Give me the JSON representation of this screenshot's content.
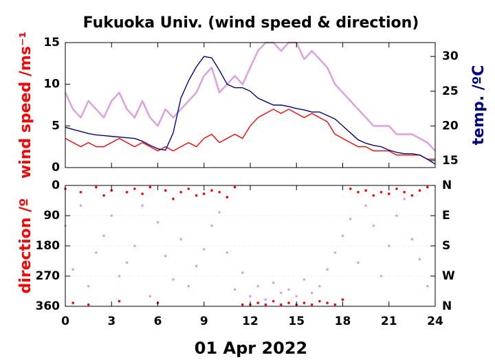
{
  "chart_data": [
    {
      "type": "line",
      "title": "Fukuoka Univ. (wind speed & direction)",
      "ylabel": "wind speed /ms⁻¹",
      "y2label": "temp. /ºC",
      "xlim": [
        0,
        24
      ],
      "xticks": [
        0,
        3,
        6,
        9,
        12,
        15,
        18,
        21,
        24
      ],
      "xticklabels": false,
      "ylim": [
        0,
        15
      ],
      "yticks": [
        0,
        5,
        10,
        15
      ],
      "ylabel_color": "#ff0000",
      "y2lim": [
        14,
        32
      ],
      "y2ticks": [
        15,
        20,
        25,
        30
      ],
      "y2label_color": "#00008b",
      "x": [
        0,
        0.5,
        1,
        1.5,
        2,
        2.5,
        3,
        3.5,
        4,
        4.5,
        5,
        5.5,
        6,
        6.5,
        7,
        7.5,
        8,
        8.5,
        9,
        9.5,
        10,
        10.5,
        11,
        11.5,
        12,
        12.5,
        13,
        13.5,
        14,
        14.5,
        15,
        15.5,
        16,
        16.5,
        17,
        17.5,
        18,
        18.5,
        19,
        19.5,
        20,
        20.5,
        21,
        21.5,
        22,
        22.5,
        23,
        23.5,
        24
      ],
      "series": [
        {
          "color": "#dda0dd",
          "values": [
            9,
            7,
            6,
            8,
            7,
            6,
            8,
            9,
            7,
            6,
            8,
            6,
            5,
            7,
            6,
            7,
            8,
            9,
            11,
            12,
            9,
            10,
            11,
            10,
            12,
            14,
            15,
            15,
            14,
            15,
            15,
            13,
            14,
            13,
            12,
            10,
            9,
            8,
            7,
            6,
            5,
            5,
            5,
            4,
            4,
            4,
            3.5,
            3,
            2
          ]
        },
        {
          "color": "#ff0000",
          "values": [
            3.5,
            3,
            2.5,
            3,
            2.5,
            2.5,
            3,
            3.5,
            3,
            2.5,
            3,
            2.5,
            2,
            2.5,
            2,
            2.5,
            3,
            2.5,
            3.5,
            4,
            3,
            3.5,
            4,
            3.5,
            5,
            6,
            6.5,
            7,
            6.5,
            7,
            6.5,
            6,
            6.5,
            6,
            5.5,
            4,
            3.5,
            3,
            2.5,
            2.5,
            2,
            2,
            2,
            1.5,
            1.5,
            1.5,
            1.5,
            1,
            1
          ]
        },
        {
          "color": "#00008b",
          "axis": "y2",
          "values": [
            19.8,
            19.5,
            19.2,
            18.9,
            18.7,
            18.6,
            18.5,
            18.4,
            18.3,
            18.2,
            17.8,
            17.2,
            16.7,
            16.5,
            19,
            24,
            26.5,
            28.5,
            30,
            29.8,
            28,
            26,
            25.5,
            25.5,
            25,
            24,
            23.5,
            23,
            23,
            22.8,
            22.5,
            22.3,
            22,
            22,
            21.5,
            21,
            20,
            19,
            18,
            17.5,
            17.2,
            17,
            16.5,
            16.2,
            16,
            16,
            15.8,
            15.2,
            14.5
          ]
        }
      ]
    },
    {
      "type": "scatter",
      "ylabel": "direction /º",
      "xlabel": "01 Apr 2022",
      "ylabel_color": "#ff0000",
      "xlim": [
        0,
        24
      ],
      "xticks": [
        0,
        3,
        6,
        9,
        12,
        15,
        18,
        21,
        24
      ],
      "xticklabels": true,
      "ylim": [
        360,
        0
      ],
      "yticks": [
        0,
        90,
        180,
        270,
        360
      ],
      "grid": true,
      "y2lim": [
        360,
        0
      ],
      "y2ticks": [
        {
          "value": 0,
          "label": "N"
        },
        {
          "value": 90,
          "label": "E"
        },
        {
          "value": 180,
          "label": "S"
        },
        {
          "value": 270,
          "label": "W"
        },
        {
          "value": 360,
          "label": "N"
        }
      ],
      "x": [
        0,
        0.5,
        1,
        1.5,
        2,
        2.5,
        3,
        3.5,
        4,
        4.5,
        5,
        5.5,
        6,
        6.5,
        7,
        7.5,
        8,
        8.5,
        9,
        9.5,
        10,
        10.5,
        11,
        11.5,
        12,
        12.5,
        13,
        13.5,
        14,
        14.5,
        15,
        15.5,
        16,
        16.5,
        17,
        17.5,
        18,
        18.5,
        19,
        19.5,
        20,
        20.5,
        21,
        21.5,
        22,
        22.5,
        23,
        23.5
      ],
      "series": [
        {
          "color": "#dda0dd",
          "values": [
            120,
            250,
            60,
            300,
            200,
            150,
            90,
            270,
            230,
            180,
            60,
            330,
            110,
            210,
            280,
            160,
            300,
            240,
            190,
            120,
            80,
            200,
            310,
            260,
            330,
            300,
            340,
            290,
            320,
            310,
            330,
            280,
            320,
            300,
            250,
            200,
            150,
            100,
            230,
            60,
            120,
            270,
            180,
            90,
            40,
            160,
            220,
            300
          ]
        },
        {
          "color": "#ff0000",
          "values": [
            10,
            350,
            20,
            355,
            5,
            30,
            15,
            345,
            20,
            10,
            25,
            5,
            350,
            15,
            40,
            20,
            10,
            30,
            25,
            15,
            20,
            35,
            5,
            355,
            355,
            350,
            355,
            345,
            355,
            350,
            355,
            350,
            355,
            345,
            350,
            355,
            340,
            10,
            20,
            15,
            30,
            20,
            25,
            10,
            20,
            30,
            15,
            5
          ]
        }
      ]
    }
  ]
}
